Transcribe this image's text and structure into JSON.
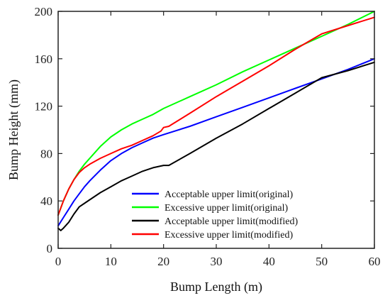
{
  "chart_data": {
    "type": "line",
    "title": "",
    "xlabel": "Bump Length (m)",
    "ylabel": "Bump Height (mm)",
    "xlim": [
      0,
      60
    ],
    "ylim": [
      0,
      200
    ],
    "xticks": [
      "0",
      "10",
      "20",
      "30",
      "40",
      "50",
      "60"
    ],
    "yticks": [
      "0",
      "40",
      "80",
      "120",
      "160",
      "200"
    ],
    "grid": false,
    "legend_position": "lower-center",
    "series": [
      {
        "name": "Acceptable upper limit(original)",
        "color": "#0000ff",
        "x": [
          0,
          1,
          2,
          3,
          4,
          5,
          6,
          8,
          10,
          12,
          14,
          16,
          18,
          20,
          25,
          30,
          35,
          40,
          45,
          50,
          55,
          60
        ],
        "y": [
          19,
          26,
          33,
          40,
          46,
          52,
          57,
          66,
          74,
          80,
          85,
          89,
          93,
          96,
          103,
          111,
          119,
          127,
          135,
          143,
          151,
          160
        ]
      },
      {
        "name": "Excessive upper limit(original)",
        "color": "#00ff00",
        "x": [
          0,
          1,
          2,
          3,
          4,
          5,
          6,
          8,
          10,
          12,
          14,
          16,
          18,
          20,
          25,
          30,
          35,
          40,
          45,
          50,
          55,
          60
        ],
        "y": [
          28,
          40,
          50,
          58,
          65,
          71,
          76,
          86,
          94,
          100,
          105,
          109,
          113,
          118,
          128,
          138,
          149,
          159,
          169,
          179,
          189,
          200
        ]
      },
      {
        "name": "Acceptable upper limit(modified)",
        "color": "#000000",
        "x": [
          0,
          0.5,
          1,
          2,
          3,
          4,
          5,
          6,
          8,
          10,
          12,
          14,
          16,
          18,
          20,
          21,
          25,
          30,
          35,
          40,
          45,
          50,
          55,
          60
        ],
        "y": [
          17,
          15,
          17,
          22,
          29,
          35,
          38,
          41,
          47,
          52,
          57,
          61,
          65,
          68,
          70,
          70,
          80,
          93,
          105,
          118,
          131,
          144,
          150,
          157
        ]
      },
      {
        "name": "Excessive upper limit(modified)",
        "color": "#ff0000",
        "x": [
          0,
          1,
          2,
          3,
          4,
          5,
          6,
          8,
          10,
          12,
          14,
          16,
          18,
          19.5,
          20,
          21,
          25,
          30,
          35,
          40,
          45,
          50,
          55,
          60
        ],
        "y": [
          28,
          40,
          50,
          58,
          64,
          68,
          71,
          76,
          80,
          84,
          87,
          91,
          95,
          99,
          102,
          103,
          114,
          128,
          141,
          154,
          168,
          181,
          188,
          195
        ]
      }
    ]
  }
}
